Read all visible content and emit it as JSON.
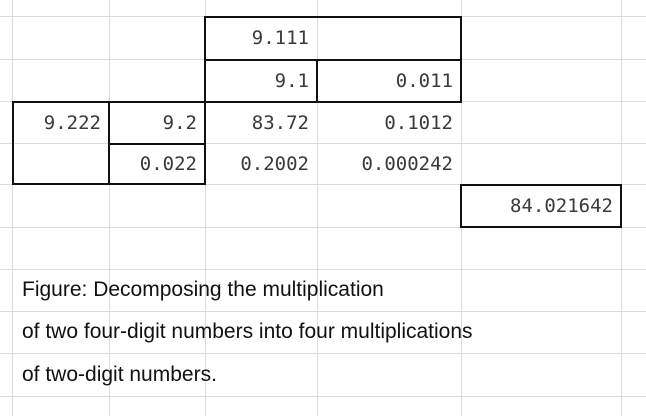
{
  "cells": {
    "a": "9.111",
    "b": "9.1",
    "c": "0.011",
    "d": "9.222",
    "e": "9.2",
    "f": "83.72",
    "g": "0.1012",
    "h": "0.022",
    "i": "0.2002",
    "j": "0.000242",
    "k": "84.021642"
  },
  "caption": {
    "line1": "Figure: Decomposing the multiplication",
    "line2": "of two four-digit numbers into four multiplications",
    "line3": "of two-digit numbers."
  }
}
